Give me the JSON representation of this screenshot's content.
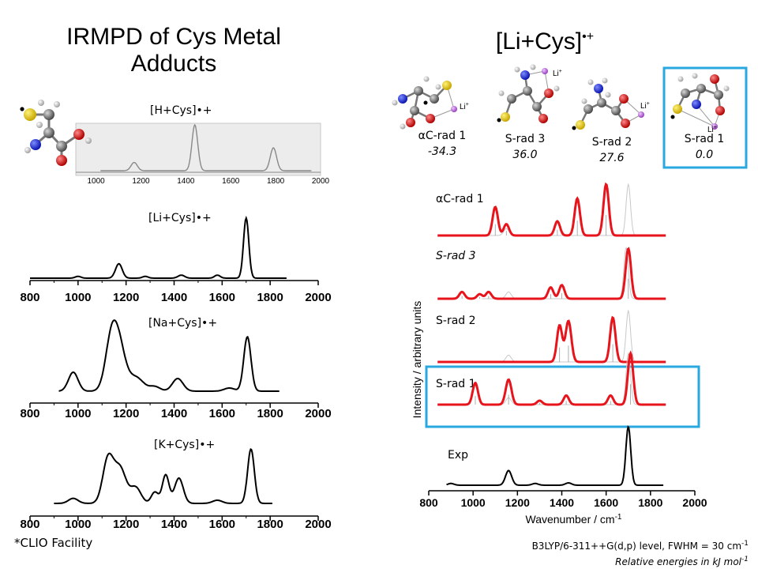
{
  "left": {
    "title_line1": "IRMPD of Cys Metal",
    "title_line2": "Adducts",
    "footnote": "*CLIO Facility"
  },
  "right": {
    "title": "[Li+Cys]",
    "title_sup": "•+",
    "isomers": [
      {
        "name": "αC-rad 1",
        "energy": "-34.3"
      },
      {
        "name": "S-rad 3",
        "energy": "36.0"
      },
      {
        "name": "S-rad 2",
        "energy": "27.6"
      },
      {
        "name": "S-rad 1",
        "energy": "0.0"
      }
    ],
    "li_label": "Li",
    "li_sup": "+",
    "footnote_line1": "B3LYP/6-311++G(d,p) level, FWHM = 30 cm",
    "footnote_line1_sup": "-1",
    "footnote_line2": "Relative energies in kJ mol",
    "footnote_line2_sup": "-1"
  },
  "colors": {
    "theory": "#e8141c",
    "highlight": "#29a8e0",
    "exp": "#000000",
    "inset_bg": "#ececec"
  },
  "chart_data": [
    {
      "type": "line",
      "title": "[H+Cys]•+",
      "x_ticks": [
        1000,
        1200,
        1400,
        1600,
        1800,
        2000
      ],
      "xlim": [
        910,
        2000
      ],
      "series": [
        {
          "color": "#888888",
          "peaks": [
            [
              1170,
              0.18,
              14
            ],
            [
              1440,
              1.0,
              13
            ],
            [
              1790,
              0.5,
              14
            ]
          ]
        }
      ]
    },
    {
      "type": "line",
      "title": "[Li+Cys]•+",
      "x_ticks": [
        800,
        1000,
        1200,
        1400,
        1600,
        1800,
        2000
      ],
      "xlim": [
        800,
        2000
      ],
      "series": [
        {
          "color": "#000000",
          "peaks": [
            [
              1000,
              0.03,
              12
            ],
            [
              1170,
              0.24,
              14
            ],
            [
              1280,
              0.03,
              12
            ],
            [
              1430,
              0.05,
              14
            ],
            [
              1580,
              0.05,
              12
            ],
            [
              1700,
              1.0,
              11
            ]
          ]
        }
      ]
    },
    {
      "type": "line",
      "title": "[Na+Cys]•+",
      "x_ticks": [
        800,
        1000,
        1200,
        1400,
        1600,
        1800,
        2000
      ],
      "xlim": [
        800,
        2000
      ],
      "series": [
        {
          "color": "#000000",
          "peaks": [
            [
              980,
              0.3,
              20
            ],
            [
              1140,
              0.85,
              25
            ],
            [
              1175,
              0.55,
              25
            ],
            [
              1240,
              0.22,
              32
            ],
            [
              1320,
              0.07,
              22
            ],
            [
              1415,
              0.2,
              22
            ],
            [
              1630,
              0.05,
              22
            ],
            [
              1705,
              0.86,
              15
            ]
          ]
        }
      ]
    },
    {
      "type": "line",
      "title": "[K+Cys]•+",
      "x_ticks": [
        800,
        1000,
        1200,
        1400,
        1600,
        1800,
        2000
      ],
      "xlim": [
        800,
        2000
      ],
      "series": [
        {
          "color": "#000000",
          "peaks": [
            [
              980,
              0.08,
              20
            ],
            [
              1125,
              0.7,
              22
            ],
            [
              1175,
              0.55,
              25
            ],
            [
              1240,
              0.25,
              22
            ],
            [
              1320,
              0.18,
              15
            ],
            [
              1365,
              0.45,
              14
            ],
            [
              1420,
              0.4,
              18
            ],
            [
              1580,
              0.05,
              20
            ],
            [
              1720,
              0.86,
              14
            ]
          ]
        }
      ]
    },
    {
      "type": "line",
      "xlabel": "Wavenumber / cm",
      "xlabel_sup": "-1",
      "ylabel": "Intensity / arbitrary units",
      "x_ticks": [
        800,
        1000,
        1200,
        1400,
        1600,
        1800,
        2000
      ],
      "xlim": [
        800,
        2000
      ],
      "series": [
        {
          "name": "αC-rad 1",
          "color": "#e8141c",
          "peaks": [
            [
              1100,
              0.5,
              12
            ],
            [
              1150,
              0.2,
              12
            ],
            [
              1380,
              0.25,
              12
            ],
            [
              1470,
              0.65,
              12
            ],
            [
              1600,
              0.9,
              12
            ]
          ],
          "ref_peaks": [
            [
              1150,
              0.12,
              12
            ],
            [
              1700,
              0.9,
              10
            ]
          ]
        },
        {
          "name": "S-rad 3",
          "color": "#e8141c",
          "peaks": [
            [
              950,
              0.12,
              12
            ],
            [
              1030,
              0.08,
              12
            ],
            [
              1070,
              0.12,
              12
            ],
            [
              1350,
              0.2,
              12
            ],
            [
              1400,
              0.24,
              12
            ],
            [
              1700,
              0.88,
              12
            ]
          ],
          "ref_peaks": [
            [
              1160,
              0.12,
              12
            ],
            [
              1690,
              0.9,
              10
            ]
          ]
        },
        {
          "name": "S-rad 2",
          "color": "#e8141c",
          "peaks": [
            [
              1390,
              0.64,
              12
            ],
            [
              1430,
              0.72,
              13
            ],
            [
              1630,
              0.78,
              12
            ]
          ],
          "ref_peaks": [
            [
              1160,
              0.12,
              12
            ],
            [
              1700,
              0.9,
              10
            ]
          ]
        },
        {
          "name": "S-rad 1",
          "color": "#e8141c",
          "peaks": [
            [
              1010,
              0.38,
              12
            ],
            [
              1160,
              0.44,
              13
            ],
            [
              1300,
              0.07,
              12
            ],
            [
              1420,
              0.16,
              12
            ],
            [
              1620,
              0.16,
              12
            ],
            [
              1710,
              0.9,
              12
            ]
          ],
          "ref_peaks": [
            [
              1160,
              0.12,
              12
            ],
            [
              1700,
              0.9,
              10
            ]
          ]
        },
        {
          "name": "Exp",
          "color": "#000000",
          "peaks": [
            [
              900,
              0.03,
              14
            ],
            [
              1160,
              0.25,
              14
            ],
            [
              1280,
              0.03,
              14
            ],
            [
              1430,
              0.04,
              14
            ],
            [
              1700,
              1.0,
              11
            ]
          ]
        }
      ]
    }
  ]
}
